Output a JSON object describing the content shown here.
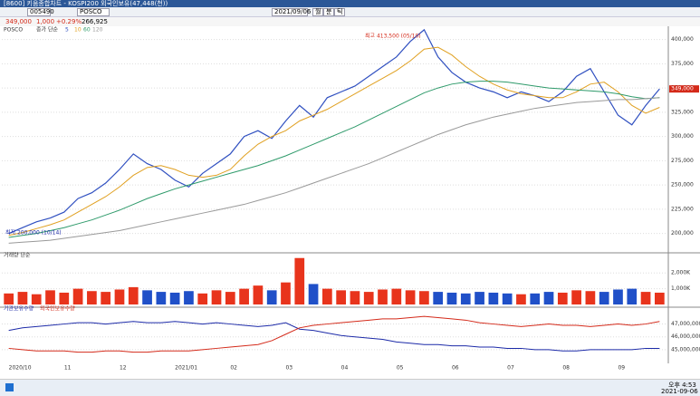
{
  "window": {
    "title": "[8600] 키움종합차트 - KOSPI200 외국인보유(47,448(천))",
    "code": "005490",
    "name": "POSCO",
    "date": "2021/09/06",
    "tab1": "월",
    "tab2": "분",
    "tab3": "틱",
    "price": "349,000",
    "change": "1,000",
    "pct": "+0.29%",
    "volume": "266,925",
    "panel": "POSCO"
  },
  "taskbar": {
    "time": "오후 4:53",
    "date": "2021-09-06"
  },
  "chart_data": [
    {
      "type": "line",
      "legend_prefix": "종가 단순",
      "grid": true,
      "annotations": [
        "최고 413,500 (05/10)",
        "최저 200,000 (10/14)"
      ],
      "current_label": "349,000",
      "ylim": [
        181000,
        408000
      ],
      "yticks": [
        {
          "value": 200000,
          "label": "200,000"
        },
        {
          "value": 225000,
          "label": "225,000"
        },
        {
          "value": 250000,
          "label": "250,000"
        },
        {
          "value": 275000,
          "label": "275,000"
        },
        {
          "value": 300000,
          "label": "300,000"
        },
        {
          "value": 325000,
          "label": "325,000"
        },
        {
          "value": 350000,
          "label": "350,000"
        },
        {
          "value": 375000,
          "label": "375,000"
        },
        {
          "value": 400000,
          "label": "400,000"
        }
      ],
      "series": [
        {
          "name": "5",
          "color": "#3050c0",
          "values": [
            200000,
            206000,
            212000,
            216000,
            222000,
            236000,
            242000,
            252000,
            266000,
            282000,
            272000,
            266000,
            255000,
            248000,
            262000,
            272000,
            282000,
            300000,
            306000,
            298000,
            316000,
            332000,
            320000,
            340000,
            346000,
            352000,
            362000,
            372000,
            382000,
            398000,
            410000,
            382000,
            366000,
            356000,
            350000,
            346000,
            340000,
            346000,
            342000,
            336000,
            346000,
            362000,
            370000,
            346000,
            322000,
            312000,
            332000,
            349000
          ]
        },
        {
          "name": "10",
          "color": "#e0a020",
          "values": [
            198000,
            201000,
            205000,
            209000,
            214000,
            222000,
            230000,
            238000,
            248000,
            260000,
            268000,
            270000,
            266000,
            260000,
            258000,
            260000,
            266000,
            280000,
            292000,
            300000,
            306000,
            316000,
            322000,
            328000,
            336000,
            344000,
            352000,
            360000,
            368000,
            378000,
            390000,
            392000,
            384000,
            372000,
            362000,
            354000,
            348000,
            344000,
            342000,
            340000,
            340000,
            346000,
            354000,
            356000,
            346000,
            332000,
            324000,
            330000
          ]
        },
        {
          "name": "60",
          "color": "#2e9a6a",
          "values": [
            196000,
            198000,
            200000,
            203000,
            206000,
            210000,
            214000,
            219000,
            224000,
            230000,
            236000,
            241000,
            246000,
            250000,
            254000,
            258000,
            262000,
            266000,
            270000,
            275000,
            280000,
            286000,
            292000,
            298000,
            304000,
            310000,
            317000,
            324000,
            331000,
            338000,
            345000,
            350000,
            354000,
            356000,
            357000,
            357000,
            356000,
            354000,
            352000,
            350000,
            349000,
            348000,
            347000,
            346000,
            344000,
            341000,
            339000,
            340000
          ]
        },
        {
          "name": "120",
          "color": "#999999",
          "values": [
            190000,
            191000,
            192000,
            193000,
            195000,
            197000,
            199000,
            201000,
            203000,
            206000,
            209000,
            212000,
            215000,
            218000,
            221000,
            224000,
            227000,
            230000,
            234000,
            238000,
            242000,
            247000,
            252000,
            257000,
            262000,
            267000,
            272000,
            278000,
            284000,
            290000,
            296000,
            302000,
            307000,
            312000,
            316000,
            320000,
            323000,
            326000,
            329000,
            331000,
            333000,
            335000,
            336000,
            337000,
            338000,
            338000,
            339000,
            340000
          ]
        }
      ]
    },
    {
      "type": "bar",
      "title": "거래량 단순",
      "up_color": "#e8341c",
      "down_color": "#2050c8",
      "grid": true,
      "ylim": [
        0,
        3050000
      ],
      "yticks": [
        {
          "value": 1000000,
          "label": "1,000K"
        },
        {
          "value": 2000000,
          "label": "2,000K"
        }
      ],
      "values": [
        700000,
        800000,
        650000,
        900000,
        750000,
        1000000,
        850000,
        800000,
        950000,
        1100000,
        900000,
        800000,
        750000,
        850000,
        700000,
        900000,
        800000,
        1000000,
        1200000,
        900000,
        1400000,
        2950000,
        1300000,
        1000000,
        900000,
        850000,
        800000,
        950000,
        1000000,
        900000,
        850000,
        800000,
        750000,
        700000,
        800000,
        750000,
        700000,
        650000,
        700000,
        800000,
        750000,
        900000,
        850000,
        800000,
        950000,
        1000000,
        800000,
        750000
      ]
    },
    {
      "type": "line",
      "grid": true,
      "ylim": [
        44000000,
        48100000
      ],
      "yticks": [
        {
          "value": 45000000,
          "label": "45,000,000"
        },
        {
          "value": 46000000,
          "label": "46,000,000"
        },
        {
          "value": 47000000,
          "label": "47,000,000"
        }
      ],
      "categories": [
        "2020/10",
        null,
        null,
        null,
        "11",
        null,
        null,
        null,
        "12",
        null,
        null,
        null,
        "2021/01",
        null,
        null,
        null,
        "02",
        null,
        null,
        null,
        "03",
        null,
        null,
        null,
        "04",
        null,
        null,
        null,
        "05",
        null,
        null,
        null,
        "06",
        null,
        null,
        null,
        "07",
        null,
        null,
        null,
        "08",
        null,
        null,
        null,
        "09",
        null,
        null,
        null
      ],
      "series": [
        {
          "name": "기관보유수량",
          "color": "#1c2aa8",
          "values": [
            46500000,
            46700000,
            46800000,
            46900000,
            47000000,
            47100000,
            47100000,
            47000000,
            47100000,
            47200000,
            47100000,
            47100000,
            47200000,
            47100000,
            47000000,
            47100000,
            47000000,
            46900000,
            46800000,
            46900000,
            47100000,
            46600000,
            46500000,
            46300000,
            46100000,
            46000000,
            45900000,
            45800000,
            45600000,
            45500000,
            45400000,
            45400000,
            45300000,
            45300000,
            45200000,
            45200000,
            45100000,
            45100000,
            45000000,
            45000000,
            44900000,
            44900000,
            45000000,
            45000000,
            45000000,
            45000000,
            45100000,
            45100000
          ]
        },
        {
          "name": "외국인보유수량",
          "color": "#d42a1a",
          "values": [
            45100000,
            45000000,
            44900000,
            44900000,
            44900000,
            44800000,
            44800000,
            44900000,
            44900000,
            44800000,
            44800000,
            44900000,
            44900000,
            44900000,
            45000000,
            45100000,
            45200000,
            45300000,
            45400000,
            45700000,
            46200000,
            46700000,
            46900000,
            47000000,
            47100000,
            47200000,
            47300000,
            47400000,
            47400000,
            47500000,
            47600000,
            47500000,
            47400000,
            47300000,
            47100000,
            47000000,
            46900000,
            46800000,
            46900000,
            47000000,
            46900000,
            46900000,
            46800000,
            46900000,
            47000000,
            46900000,
            47000000,
            47200000
          ]
        }
      ]
    }
  ]
}
